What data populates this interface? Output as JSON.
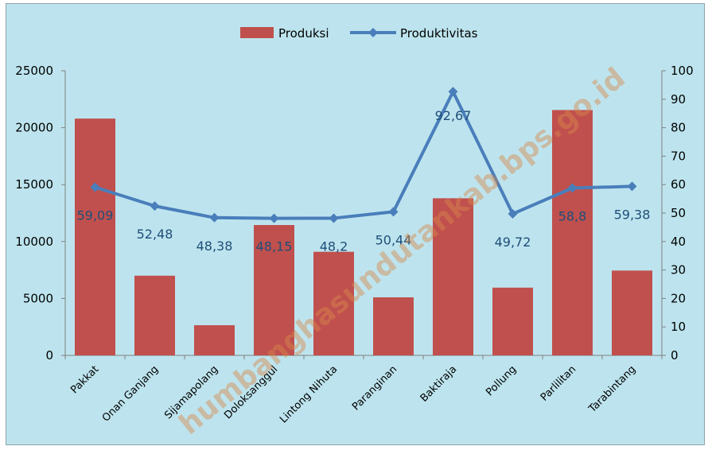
{
  "chart_data": {
    "type": "bar",
    "categories": [
      "Pakkat",
      "Onan Ganjang",
      "Sijamapolang",
      "Doloksanggul",
      "Lintong Nihuta",
      "Paranginan",
      "Baktiraja",
      "Pollung",
      "Parlilitan",
      "Tarabintang"
    ],
    "series": [
      {
        "name": "Produksi",
        "type": "bar",
        "axis": "left",
        "color": "#c0504d",
        "values": [
          20800,
          7000,
          2650,
          11450,
          9100,
          5100,
          13800,
          5950,
          21550,
          7450
        ]
      },
      {
        "name": "Produktivitas",
        "type": "line",
        "axis": "right",
        "color": "#4a7ebb",
        "values": [
          59.09,
          52.48,
          48.38,
          48.15,
          48.2,
          50.44,
          92.67,
          49.72,
          58.8,
          59.38
        ],
        "labels": [
          "59,09",
          "52,48",
          "48,38",
          "48,15",
          "48,2",
          "50,44",
          "92,67",
          "49,72",
          "58,8",
          "59,38"
        ]
      }
    ],
    "y_left": {
      "ylim": [
        0,
        25000
      ],
      "ticks": [
        "0",
        "5000",
        "10000",
        "15000",
        "20000",
        "25000"
      ]
    },
    "y_right": {
      "ylim": [
        0,
        100
      ],
      "ticks": [
        "0",
        "10",
        "20",
        "30",
        "40",
        "50",
        "60",
        "70",
        "80",
        "90",
        "100"
      ]
    },
    "legend": {
      "position": "top",
      "items": [
        "Produksi",
        "Produktivitas"
      ]
    },
    "watermark": "humbanghasundutankab.bps.go.id",
    "grid": false
  }
}
